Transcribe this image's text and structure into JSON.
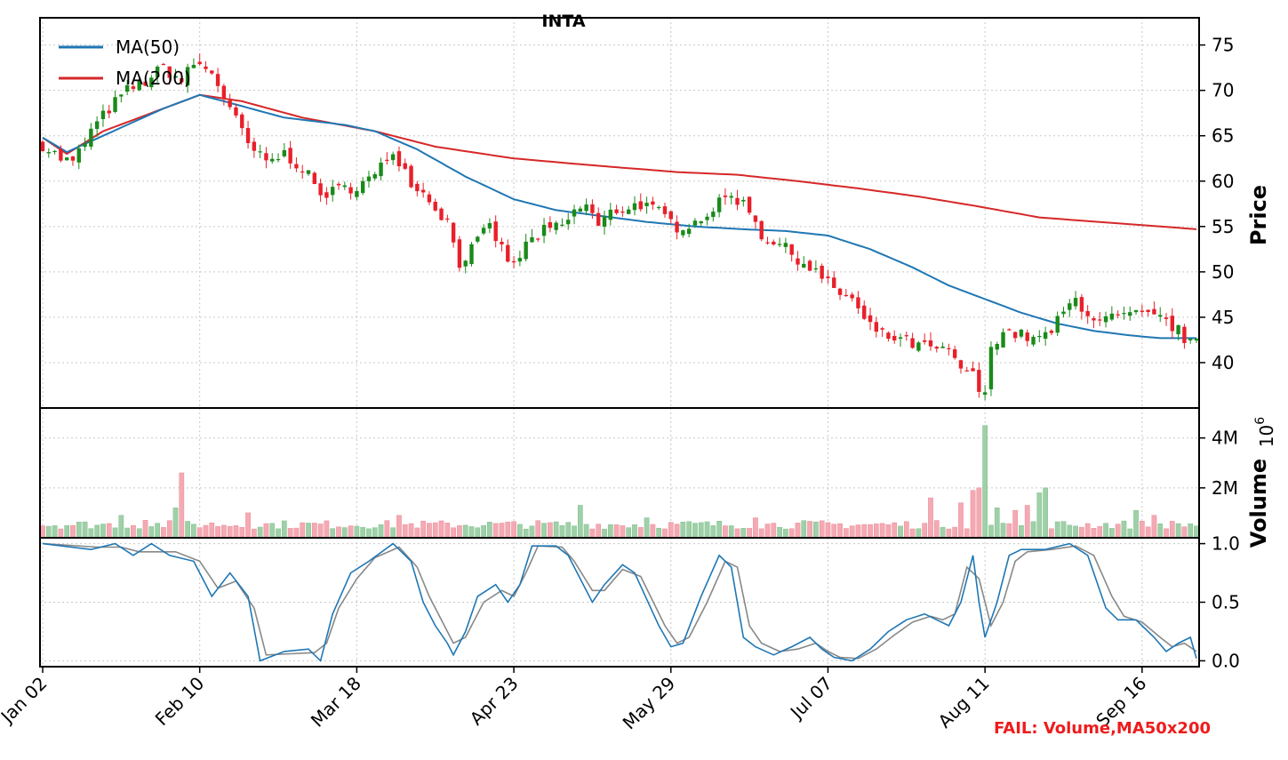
{
  "chart_data": {
    "type": "candlestick",
    "title": "INTA",
    "footer_note": "FAIL: Volume,MA50x200",
    "colors": {
      "up": "#1a8a1a",
      "down": "#e8202a",
      "vol_up": "#9fd0a8",
      "vol_down": "#f4a9b3",
      "ma50": "#1f77b4",
      "ma200": "#d62728",
      "stoch_k": "#1f77b4",
      "stoch_d": "#888888",
      "fail": "#ee1c1c"
    },
    "x_ticks": [
      "Jan 02",
      "Feb 10",
      "Mar 18",
      "Apr 23",
      "May 29",
      "Jul 07",
      "Aug 11",
      "Sep 16"
    ],
    "x_tick_index": [
      0,
      26,
      52,
      78,
      104,
      130,
      156,
      182
    ],
    "n_bars": 192,
    "price_panel": {
      "ylabel": "Price",
      "ylim": [
        35,
        78
      ],
      "yticks": [
        "40",
        "45",
        "50",
        "55",
        "60",
        "65",
        "70",
        "75"
      ],
      "ytick_values": [
        40,
        45,
        50,
        55,
        60,
        65,
        70,
        75
      ],
      "legend": [
        "MA(50)",
        "MA(200)"
      ],
      "legend_position": "top-left",
      "anchors": [
        [
          0,
          64.0
        ],
        [
          3,
          62.5
        ],
        [
          5,
          62.0
        ],
        [
          8,
          65.5
        ],
        [
          11,
          68.0
        ],
        [
          14,
          70.0
        ],
        [
          17,
          71.0
        ],
        [
          20,
          72.5
        ],
        [
          23,
          71.0
        ],
        [
          25,
          73.0
        ],
        [
          28,
          72.0
        ],
        [
          31,
          68.0
        ],
        [
          34,
          64.0
        ],
        [
          37,
          62.0
        ],
        [
          40,
          63.0
        ],
        [
          43,
          61.5
        ],
        [
          46,
          58.5
        ],
        [
          49,
          59.0
        ],
        [
          52,
          59.5
        ],
        [
          55,
          60.5
        ],
        [
          58,
          63.5
        ],
        [
          61,
          60.0
        ],
        [
          64,
          58.0
        ],
        [
          67,
          55.5
        ],
        [
          69,
          51.0
        ],
        [
          71,
          52.5
        ],
        [
          74,
          55.0
        ],
        [
          76,
          52.5
        ],
        [
          78,
          50.5
        ],
        [
          80,
          53.0
        ],
        [
          83,
          54.5
        ],
        [
          86,
          55.0
        ],
        [
          88,
          56.5
        ],
        [
          90,
          57.5
        ],
        [
          92,
          55.0
        ],
        [
          94,
          56.5
        ],
        [
          96,
          57.0
        ],
        [
          99,
          57.5
        ],
        [
          102,
          56.5
        ],
        [
          105,
          55.0
        ],
        [
          108,
          55.5
        ],
        [
          111,
          57.0
        ],
        [
          114,
          58.5
        ],
        [
          117,
          57.0
        ],
        [
          119,
          54.0
        ],
        [
          122,
          53.0
        ],
        [
          125,
          51.5
        ],
        [
          128,
          50.0
        ],
        [
          131,
          48.0
        ],
        [
          134,
          47.0
        ],
        [
          136,
          44.5
        ],
        [
          139,
          43.0
        ],
        [
          142,
          42.5
        ],
        [
          145,
          41.8
        ],
        [
          148,
          41.5
        ],
        [
          150,
          41.0
        ],
        [
          152,
          39.5
        ],
        [
          154,
          38.5
        ],
        [
          155,
          37.0
        ],
        [
          156,
          36.2
        ],
        [
          157,
          42.0
        ],
        [
          159,
          43.5
        ],
        [
          162,
          43.0
        ],
        [
          165,
          42.5
        ],
        [
          167,
          43.5
        ],
        [
          169,
          45.5
        ],
        [
          171,
          47.0
        ],
        [
          173,
          45.5
        ],
        [
          175,
          44.5
        ],
        [
          178,
          45.0
        ],
        [
          181,
          45.2
        ],
        [
          184,
          45.0
        ],
        [
          186,
          44.5
        ],
        [
          188,
          43.5
        ],
        [
          190,
          42.0
        ],
        [
          191,
          42.0
        ]
      ],
      "ma50_anchors": [
        [
          0,
          64.8
        ],
        [
          4,
          63.2
        ],
        [
          10,
          65.0
        ],
        [
          15,
          66.5
        ],
        [
          20,
          68.0
        ],
        [
          26,
          69.5
        ],
        [
          30,
          68.8
        ],
        [
          40,
          67.0
        ],
        [
          50,
          66.2
        ],
        [
          55,
          65.5
        ],
        [
          62,
          63.5
        ],
        [
          70,
          60.5
        ],
        [
          78,
          58.0
        ],
        [
          85,
          56.8
        ],
        [
          92,
          56.2
        ],
        [
          100,
          55.5
        ],
        [
          108,
          55.0
        ],
        [
          116,
          54.7
        ],
        [
          123,
          54.5
        ],
        [
          130,
          54.0
        ],
        [
          137,
          52.5
        ],
        [
          144,
          50.5
        ],
        [
          150,
          48.5
        ],
        [
          156,
          47.0
        ],
        [
          162,
          45.5
        ],
        [
          168,
          44.3
        ],
        [
          174,
          43.5
        ],
        [
          180,
          43.0
        ],
        [
          185,
          42.7
        ],
        [
          191,
          42.7
        ]
      ],
      "ma200_anchors": [
        [
          0,
          64.8
        ],
        [
          4,
          63.0
        ],
        [
          10,
          65.5
        ],
        [
          16,
          67.0
        ],
        [
          26,
          69.5
        ],
        [
          33,
          68.8
        ],
        [
          43,
          67.0
        ],
        [
          55,
          65.5
        ],
        [
          65,
          63.8
        ],
        [
          78,
          62.5
        ],
        [
          90,
          61.8
        ],
        [
          105,
          61.0
        ],
        [
          115,
          60.7
        ],
        [
          125,
          60.0
        ],
        [
          135,
          59.2
        ],
        [
          145,
          58.3
        ],
        [
          155,
          57.2
        ],
        [
          165,
          56.0
        ],
        [
          175,
          55.5
        ],
        [
          185,
          55.0
        ],
        [
          191,
          54.7
        ]
      ]
    },
    "volume_panel": {
      "ylabel": "Volume",
      "scale_label": "10",
      "scale_exponent": "6",
      "ylim": [
        0,
        5.2
      ],
      "yticks": [
        "2M",
        "4M"
      ],
      "ytick_values": [
        2,
        4
      ],
      "spikes": [
        [
          23,
          2.6
        ],
        [
          22,
          1.2
        ],
        [
          13,
          0.9
        ],
        [
          17,
          0.7
        ],
        [
          34,
          1.0
        ],
        [
          59,
          0.9
        ],
        [
          89,
          1.3
        ],
        [
          100,
          0.8
        ],
        [
          118,
          0.8
        ],
        [
          147,
          1.6
        ],
        [
          152,
          1.4
        ],
        [
          154,
          1.9
        ],
        [
          155,
          2.0
        ],
        [
          156,
          4.5
        ],
        [
          158,
          1.2
        ],
        [
          161,
          1.1
        ],
        [
          163,
          1.3
        ],
        [
          165,
          1.8
        ],
        [
          166,
          2.0
        ],
        [
          181,
          1.1
        ],
        [
          184,
          0.9
        ]
      ]
    },
    "stoch_panel": {
      "ylim": [
        -0.05,
        1.05
      ],
      "yticks": [
        "0.0",
        "0.5",
        "1.0"
      ],
      "ytick_values": [
        0.0,
        0.5,
        1.0
      ],
      "k_anchors": [
        [
          0,
          1.0
        ],
        [
          8,
          0.95
        ],
        [
          12,
          1.0
        ],
        [
          15,
          0.9
        ],
        [
          18,
          1.0
        ],
        [
          21,
          0.9
        ],
        [
          25,
          0.85
        ],
        [
          28,
          0.55
        ],
        [
          31,
          0.75
        ],
        [
          34,
          0.55
        ],
        [
          36,
          0.0
        ],
        [
          40,
          0.08
        ],
        [
          44,
          0.1
        ],
        [
          46,
          0.0
        ],
        [
          48,
          0.4
        ],
        [
          51,
          0.75
        ],
        [
          54,
          0.85
        ],
        [
          58,
          1.0
        ],
        [
          61,
          0.85
        ],
        [
          63,
          0.5
        ],
        [
          65,
          0.3
        ],
        [
          67,
          0.15
        ],
        [
          68,
          0.05
        ],
        [
          70,
          0.25
        ],
        [
          72,
          0.55
        ],
        [
          75,
          0.65
        ],
        [
          77,
          0.5
        ],
        [
          79,
          0.65
        ],
        [
          81,
          0.98
        ],
        [
          85,
          0.98
        ],
        [
          87,
          0.9
        ],
        [
          91,
          0.5
        ],
        [
          93,
          0.65
        ],
        [
          96,
          0.82
        ],
        [
          98,
          0.75
        ],
        [
          102,
          0.3
        ],
        [
          104,
          0.12
        ],
        [
          106,
          0.15
        ],
        [
          109,
          0.55
        ],
        [
          112,
          0.9
        ],
        [
          114,
          0.8
        ],
        [
          116,
          0.2
        ],
        [
          118,
          0.12
        ],
        [
          121,
          0.05
        ],
        [
          124,
          0.12
        ],
        [
          127,
          0.2
        ],
        [
          129,
          0.1
        ],
        [
          131,
          0.03
        ],
        [
          134,
          0.0
        ],
        [
          137,
          0.1
        ],
        [
          140,
          0.25
        ],
        [
          143,
          0.35
        ],
        [
          146,
          0.4
        ],
        [
          148,
          0.35
        ],
        [
          150,
          0.3
        ],
        [
          152,
          0.5
        ],
        [
          154,
          0.9
        ],
        [
          155,
          0.5
        ],
        [
          156,
          0.2
        ],
        [
          158,
          0.5
        ],
        [
          160,
          0.9
        ],
        [
          162,
          0.95
        ],
        [
          166,
          0.95
        ],
        [
          170,
          1.0
        ],
        [
          173,
          0.9
        ],
        [
          176,
          0.45
        ],
        [
          178,
          0.35
        ],
        [
          181,
          0.35
        ],
        [
          184,
          0.2
        ],
        [
          186,
          0.08
        ],
        [
          188,
          0.15
        ],
        [
          190,
          0.2
        ],
        [
          191,
          0.02
        ]
      ],
      "d_anchors": [
        [
          0,
          1.0
        ],
        [
          9,
          0.97
        ],
        [
          13,
          0.97
        ],
        [
          16,
          0.93
        ],
        [
          22,
          0.93
        ],
        [
          26,
          0.85
        ],
        [
          29,
          0.62
        ],
        [
          32,
          0.68
        ],
        [
          35,
          0.45
        ],
        [
          37,
          0.05
        ],
        [
          41,
          0.06
        ],
        [
          45,
          0.07
        ],
        [
          47,
          0.15
        ],
        [
          49,
          0.45
        ],
        [
          52,
          0.7
        ],
        [
          55,
          0.88
        ],
        [
          59,
          0.97
        ],
        [
          62,
          0.8
        ],
        [
          64,
          0.55
        ],
        [
          66,
          0.35
        ],
        [
          68,
          0.15
        ],
        [
          70,
          0.2
        ],
        [
          73,
          0.5
        ],
        [
          76,
          0.6
        ],
        [
          78,
          0.55
        ],
        [
          80,
          0.75
        ],
        [
          82,
          0.98
        ],
        [
          86,
          0.97
        ],
        [
          88,
          0.85
        ],
        [
          91,
          0.6
        ],
        [
          93,
          0.6
        ],
        [
          96,
          0.78
        ],
        [
          99,
          0.72
        ],
        [
          103,
          0.3
        ],
        [
          105,
          0.15
        ],
        [
          107,
          0.2
        ],
        [
          110,
          0.5
        ],
        [
          113,
          0.85
        ],
        [
          115,
          0.8
        ],
        [
          117,
          0.3
        ],
        [
          119,
          0.15
        ],
        [
          122,
          0.08
        ],
        [
          125,
          0.1
        ],
        [
          128,
          0.15
        ],
        [
          130,
          0.08
        ],
        [
          132,
          0.03
        ],
        [
          135,
          0.02
        ],
        [
          138,
          0.1
        ],
        [
          141,
          0.22
        ],
        [
          144,
          0.33
        ],
        [
          147,
          0.38
        ],
        [
          149,
          0.35
        ],
        [
          151,
          0.4
        ],
        [
          153,
          0.8
        ],
        [
          155,
          0.7
        ],
        [
          157,
          0.3
        ],
        [
          159,
          0.5
        ],
        [
          161,
          0.85
        ],
        [
          163,
          0.93
        ],
        [
          167,
          0.95
        ],
        [
          171,
          0.98
        ],
        [
          174,
          0.9
        ],
        [
          177,
          0.55
        ],
        [
          179,
          0.38
        ],
        [
          182,
          0.33
        ],
        [
          185,
          0.2
        ],
        [
          187,
          0.12
        ],
        [
          189,
          0.15
        ],
        [
          191,
          0.08
        ]
      ]
    }
  }
}
